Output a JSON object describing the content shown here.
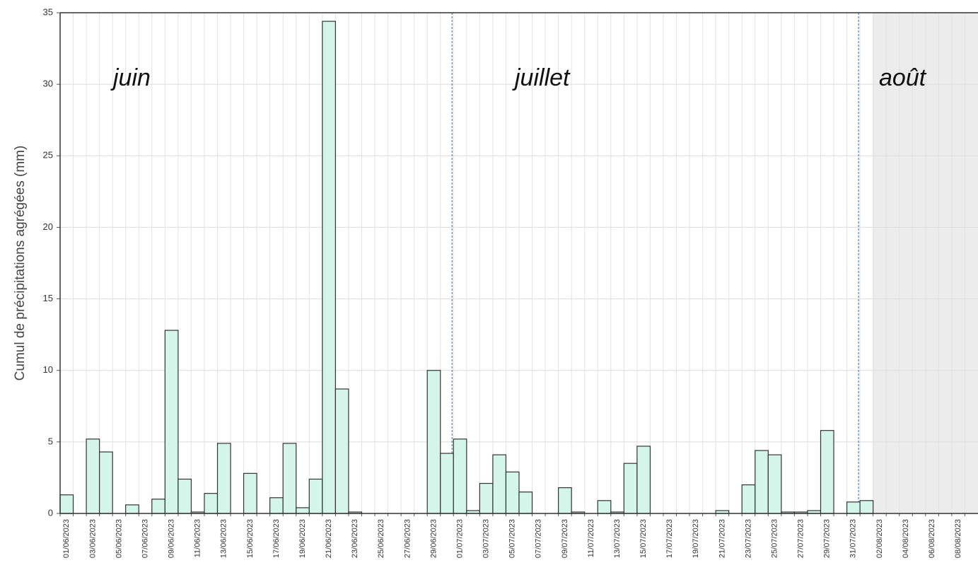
{
  "chart_data": {
    "type": "bar",
    "y_label": "Cumul de précipitations agrégées (mm)",
    "annotations": [
      "juin",
      "juillet",
      "août"
    ],
    "categories": [
      "01/06/2023",
      null,
      "03/06/2023",
      null,
      "05/06/2023",
      null,
      "07/06/2023",
      null,
      "09/06/2023",
      null,
      "11/06/2023",
      null,
      "13/06/2023",
      null,
      "15/06/2023",
      null,
      "17/06/2023",
      null,
      "19/06/2023",
      null,
      "21/06/2023",
      null,
      "23/06/2023",
      null,
      "25/06/2023",
      null,
      "27/06/2023",
      null,
      "29/06/2023",
      null,
      "01/07/2023",
      null,
      "03/07/2023",
      null,
      "05/07/2023",
      null,
      "07/07/2023",
      null,
      "09/07/2023",
      null,
      "11/07/2023",
      null,
      "13/07/2023",
      null,
      "15/07/2023",
      null,
      "17/07/2023",
      null,
      "19/07/2023",
      null,
      "21/07/2023",
      null,
      "23/07/2023",
      null,
      "25/07/2023",
      null,
      "27/07/2023",
      null,
      "29/07/2023",
      null,
      "31/07/2023",
      null,
      "02/08/2023",
      null,
      "04/08/2023",
      null,
      "06/08/2023",
      null,
      "08/08/2023",
      null
    ],
    "values": [
      1.3,
      0,
      5.2,
      4.3,
      0,
      0.6,
      0,
      1.0,
      12.8,
      2.4,
      0.1,
      1.4,
      4.9,
      0,
      2.8,
      0,
      1.1,
      4.9,
      0.4,
      2.4,
      34.4,
      8.7,
      0.1,
      0,
      0,
      0,
      0,
      0,
      10.0,
      4.2,
      5.2,
      0.2,
      2.1,
      4.1,
      2.9,
      1.5,
      0,
      0,
      1.8,
      0.1,
      0,
      0.9,
      0.1,
      3.5,
      4.7,
      0,
      0,
      0,
      0,
      0,
      0.2,
      0,
      2.0,
      4.4,
      4.1,
      0.1,
      0.1,
      0.2,
      5.8,
      0,
      0.8,
      0.9,
      null,
      null,
      null,
      null,
      null,
      null,
      null,
      null
    ],
    "color": "#d4f5e9",
    "ylim": [
      0,
      35
    ],
    "yticks": [
      0,
      5,
      10,
      15,
      20,
      25,
      30,
      35
    ],
    "grid": true
  }
}
